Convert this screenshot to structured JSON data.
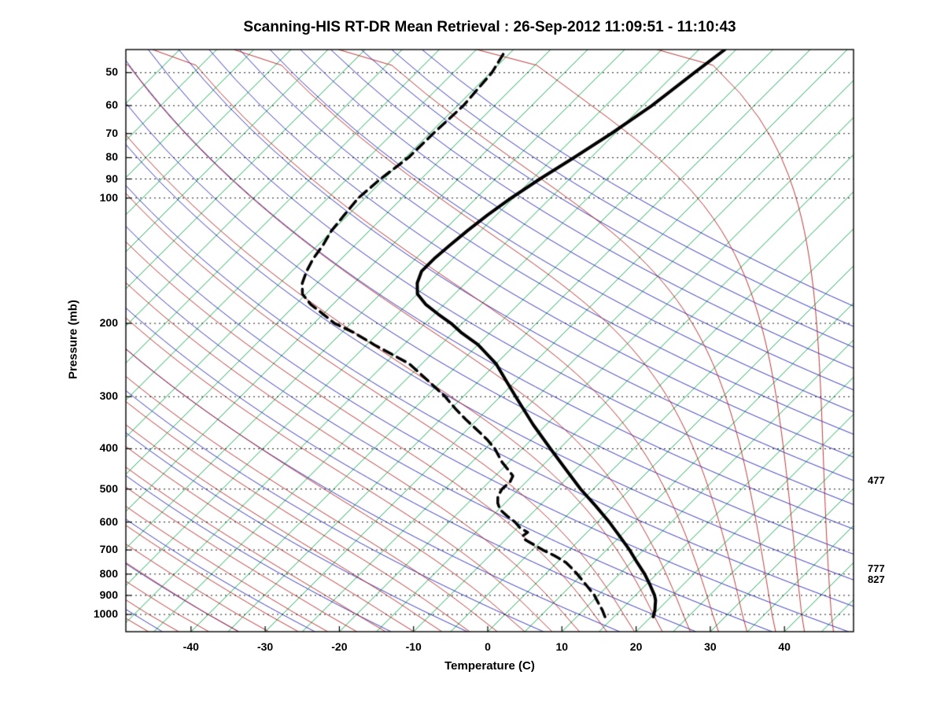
{
  "title": "Scanning-HIS RT-DR Mean Retrieval : 26-Sep-2012 11:09:51 - 11:10:43",
  "xlabel": "Temperature (C)",
  "ylabel": "Pressure (mb)",
  "right_annotations": [
    {
      "label": "477",
      "pressure": 477
    },
    {
      "label": "777",
      "pressure": 777
    },
    {
      "label": "827",
      "pressure": 827
    }
  ],
  "chart_data": {
    "type": "line",
    "variant": "skew-t-log-p",
    "title": "Scanning-HIS RT-DR Mean Retrieval : 26-Sep-2012 11:09:51 - 11:10:43",
    "xlabel": "Temperature (C)",
    "ylabel": "Pressure (mb)",
    "x_axis": {
      "ticks": [
        -40,
        -30,
        -20,
        -10,
        0,
        10,
        20,
        30,
        40
      ],
      "min": -48.8,
      "max": 49.3,
      "unit": "C",
      "skew_deg": 45
    },
    "y_axis": {
      "ticks": [
        50,
        60,
        70,
        80,
        90,
        100,
        200,
        300,
        400,
        500,
        600,
        700,
        800,
        900,
        1000
      ],
      "min": 44,
      "max": 1100,
      "scale": "log",
      "unit": "mb"
    },
    "background_lines": {
      "isotherms": {
        "color": "#00a344",
        "start_c": -120,
        "end_c": 45,
        "step_c": 5,
        "width": 0.9
      },
      "dry_adiabats": {
        "color": "#2424b4",
        "theta_start_c": -60,
        "theta_end_c": 180,
        "step_c": 10,
        "width": 0.9
      },
      "moist_adiabats": {
        "color": "#b22222",
        "t1000_start_c": -52,
        "t1000_end_c": 44,
        "step_c": 4,
        "width": 0.9
      },
      "isobars": {
        "color": "#000000",
        "style": "dotted",
        "levels": [
          50,
          60,
          70,
          80,
          90,
          100,
          200,
          300,
          400,
          500,
          600,
          700,
          800,
          900,
          1000
        ],
        "width": 0.9
      }
    },
    "series": [
      {
        "name": "temperature",
        "style": "solid",
        "color": "#000000",
        "width": 4,
        "points": [
          [
            1013,
            20.3
          ],
          [
            975,
            19.6
          ],
          [
            950,
            19.0
          ],
          [
            925,
            18.4
          ],
          [
            900,
            17.6
          ],
          [
            850,
            15.6
          ],
          [
            800,
            13.4
          ],
          [
            750,
            10.8
          ],
          [
            700,
            8.1
          ],
          [
            650,
            5.0
          ],
          [
            600,
            1.6
          ],
          [
            550,
            -2.3
          ],
          [
            500,
            -6.7
          ],
          [
            450,
            -11.2
          ],
          [
            400,
            -16.2
          ],
          [
            350,
            -21.8
          ],
          [
            300,
            -27.9
          ],
          [
            275,
            -31.3
          ],
          [
            250,
            -35.0
          ],
          [
            225,
            -40.0
          ],
          [
            210,
            -44.0
          ],
          [
            200,
            -46.5
          ],
          [
            190,
            -49.5
          ],
          [
            180,
            -52.5
          ],
          [
            170,
            -55.0
          ],
          [
            160,
            -56.5
          ],
          [
            150,
            -57.5
          ],
          [
            140,
            -57.5
          ],
          [
            130,
            -57.2
          ],
          [
            120,
            -56.8
          ],
          [
            110,
            -56.2
          ],
          [
            100,
            -55.3
          ],
          [
            90,
            -54.0
          ],
          [
            80,
            -52.3
          ],
          [
            70,
            -50.5
          ],
          [
            60,
            -48.8
          ],
          [
            50,
            -47.5
          ],
          [
            44,
            -46.5
          ]
        ]
      },
      {
        "name": "dewpoint",
        "style": "dashed",
        "color": "#000000",
        "width": 3.5,
        "points": [
          [
            1013,
            13.8
          ],
          [
            975,
            12.5
          ],
          [
            950,
            11.5
          ],
          [
            925,
            10.5
          ],
          [
            900,
            9.5
          ],
          [
            850,
            7.0
          ],
          [
            800,
            4.3
          ],
          [
            770,
            2.5
          ],
          [
            750,
            1.2
          ],
          [
            720,
            -1.5
          ],
          [
            700,
            -3.6
          ],
          [
            680,
            -5.5
          ],
          [
            660,
            -7.5
          ],
          [
            648,
            -8.2
          ],
          [
            635,
            -8.0
          ],
          [
            620,
            -9.6
          ],
          [
            600,
            -11.1
          ],
          [
            580,
            -13.0
          ],
          [
            560,
            -14.8
          ],
          [
            540,
            -16.0
          ],
          [
            520,
            -16.9
          ],
          [
            500,
            -17.3
          ],
          [
            480,
            -17.2
          ],
          [
            465,
            -17.6
          ],
          [
            450,
            -19.0
          ],
          [
            430,
            -21.0
          ],
          [
            400,
            -23.7
          ],
          [
            380,
            -26.0
          ],
          [
            360,
            -28.7
          ],
          [
            340,
            -31.6
          ],
          [
            320,
            -34.5
          ],
          [
            300,
            -37.4
          ],
          [
            275,
            -41.8
          ],
          [
            250,
            -46.7
          ],
          [
            225,
            -54.0
          ],
          [
            210,
            -58.5
          ],
          [
            200,
            -62.2
          ],
          [
            190,
            -65.0
          ],
          [
            180,
            -68.0
          ],
          [
            170,
            -70.5
          ],
          [
            160,
            -72.0
          ],
          [
            150,
            -73.0
          ],
          [
            140,
            -73.8
          ],
          [
            130,
            -74.3
          ],
          [
            120,
            -75.1
          ],
          [
            110,
            -75.5
          ],
          [
            100,
            -75.9
          ],
          [
            90,
            -75.5
          ],
          [
            80,
            -74.6
          ],
          [
            70,
            -74.5
          ],
          [
            60,
            -74.2
          ],
          [
            50,
            -74.8
          ],
          [
            44,
            -76.0
          ]
        ]
      }
    ],
    "annotations": [
      {
        "label": "477",
        "pressure": 477
      },
      {
        "label": "777",
        "pressure": 777
      },
      {
        "label": "827",
        "pressure": 827
      }
    ]
  }
}
